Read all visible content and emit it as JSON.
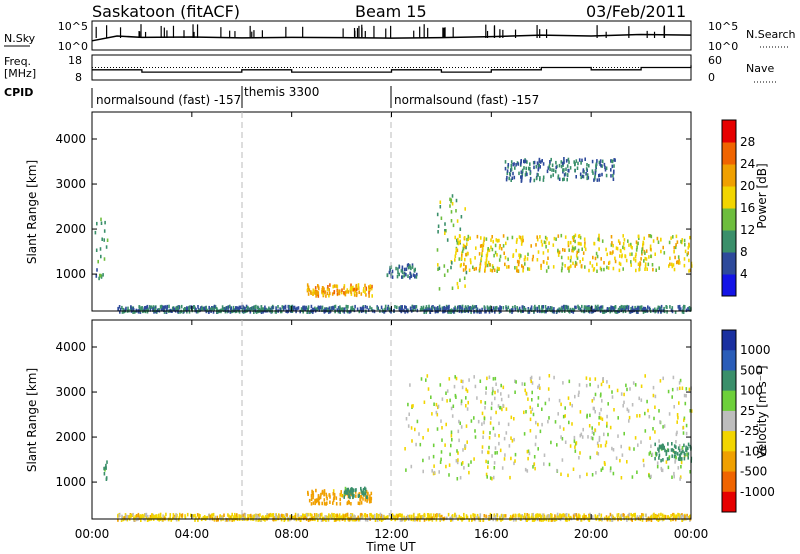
{
  "header": {
    "radar": "Saskatoon (fitACF)",
    "beam": "Beam 15",
    "date": "03/Feb/2011"
  },
  "noise_panel": {
    "left_label": "N.Sky",
    "left_ticks": [
      "10^5",
      "10^0"
    ],
    "right_ticks": [
      "10^5",
      "10^0"
    ],
    "right_label": "N.Search"
  },
  "freq_panel": {
    "left_label_line1": "Freq.",
    "left_label_line2": "[MHz]",
    "left_ticks": [
      "18",
      "8"
    ],
    "right_ticks": [
      "60",
      "0"
    ],
    "right_label": "Nave"
  },
  "cpid": {
    "label": "CPID",
    "segments": [
      {
        "text": "normalsound (fast) -157",
        "start_hr": 0.0
      },
      {
        "text": "themis 3300",
        "start_hr": 6.0
      },
      {
        "text": "normalsound (fast) -157",
        "start_hr": 12.0
      }
    ]
  },
  "time_axis": {
    "ticks": [
      "00:00",
      "04:00",
      "08:00",
      "12:00",
      "16:00",
      "20:00",
      "00:00"
    ],
    "title": "Time UT"
  },
  "y_axis": {
    "label": "Slant Range [km]",
    "ticks": [
      "1000",
      "2000",
      "3000",
      "4000"
    ]
  },
  "power_scale": {
    "title": "Power [dB]",
    "ticks": [
      "4",
      "8",
      "12",
      "16",
      "20",
      "24",
      "28"
    ],
    "colors": [
      "#1414e6",
      "#2e4a9b",
      "#3a8f6a",
      "#6dbd3d",
      "#f2d500",
      "#f0a000",
      "#f06400",
      "#e60000"
    ]
  },
  "velocity_scale": {
    "title": "Velocity [m s⁻¹]",
    "ticks": [
      "1000",
      "500",
      "100",
      "25",
      "-25",
      "-100",
      "-500",
      "-1000"
    ],
    "colors": [
      "#1a30a0",
      "#2a5db8",
      "#3a8f6a",
      "#6dcf3a",
      "#bdbdbd",
      "#f2d500",
      "#f0a000",
      "#f06400",
      "#e60000"
    ]
  },
  "chart_data": [
    {
      "type": "line",
      "title": "N.Sky",
      "xlabel": "Time UT",
      "x_range_hours": [
        0,
        24
      ],
      "y_scale": "log",
      "ylim": [
        1,
        100000
      ],
      "series": [
        {
          "name": "N.Sky",
          "x": [
            0,
            1,
            2,
            4,
            6,
            8,
            10,
            12,
            14,
            16,
            18,
            20,
            22,
            24
          ],
          "values": [
            20,
            200,
            100,
            120,
            80,
            100,
            90,
            70,
            90,
            150,
            300,
            200,
            400,
            300
          ]
        }
      ]
    },
    {
      "type": "line",
      "title": "Freq. [MHz] / Nave",
      "x_range_hours": [
        0,
        24
      ],
      "ylim": [
        8,
        18
      ],
      "y2lim": [
        0,
        60
      ],
      "series": [
        {
          "name": "Freq.",
          "x": [
            0,
            2,
            4,
            6,
            8,
            10,
            12,
            14,
            16,
            18,
            20,
            22,
            24
          ],
          "values": [
            12,
            11,
            11,
            12,
            11,
            11,
            12,
            11,
            12,
            13,
            12,
            13,
            14
          ]
        },
        {
          "name": "Nave",
          "x": [
            0,
            24
          ],
          "values": [
            30,
            30
          ]
        }
      ]
    },
    {
      "type": "heatmap",
      "title": "Power [dB]",
      "xlabel": "Time UT",
      "ylabel": "Slant Range [km]",
      "x_range_hours": [
        0,
        24
      ],
      "ylim": [
        180,
        4600
      ],
      "clim": [
        0,
        30
      ],
      "regions": [
        {
          "t0": 0.1,
          "t1": 0.6,
          "r0": 900,
          "r1": 2300,
          "power": 10
        },
        {
          "t0": 8.6,
          "t1": 11.2,
          "r0": 550,
          "r1": 800,
          "power": 22
        },
        {
          "t0": 11.8,
          "t1": 13.0,
          "r0": 950,
          "r1": 1250,
          "power": 8
        },
        {
          "t0": 13.8,
          "t1": 15.0,
          "r0": 700,
          "r1": 2800,
          "power": 14
        },
        {
          "t0": 14.5,
          "t1": 24.0,
          "r0": 1100,
          "r1": 1900,
          "power": 18
        },
        {
          "t0": 16.5,
          "t1": 21.0,
          "r0": 3100,
          "r1": 3600,
          "power": 8
        },
        {
          "t0": 1.0,
          "t1": 24.0,
          "r0": 190,
          "r1": 320,
          "power": 8
        }
      ]
    },
    {
      "type": "heatmap",
      "title": "Velocity [m s⁻¹]",
      "xlabel": "Time UT",
      "ylabel": "Slant Range [km]",
      "x_range_hours": [
        0,
        24
      ],
      "ylim": [
        180,
        4600
      ],
      "clim": [
        -1000,
        1000
      ],
      "regions": [
        {
          "t0": 0.4,
          "t1": 0.6,
          "r0": 1100,
          "r1": 1500,
          "velocity": 150
        },
        {
          "t0": 8.6,
          "t1": 11.2,
          "r0": 550,
          "r1": 850,
          "velocity": -150
        },
        {
          "t0": 10.0,
          "t1": 11.0,
          "r0": 700,
          "r1": 900,
          "velocity": 150
        },
        {
          "t0": 12.5,
          "t1": 24.0,
          "r0": 1100,
          "r1": 3400,
          "velocity": 0
        },
        {
          "t0": 22.5,
          "t1": 24.0,
          "r0": 1500,
          "r1": 1900,
          "velocity": 150
        },
        {
          "t0": 1.0,
          "t1": 24.0,
          "r0": 190,
          "r1": 320,
          "velocity": -60
        }
      ]
    }
  ]
}
